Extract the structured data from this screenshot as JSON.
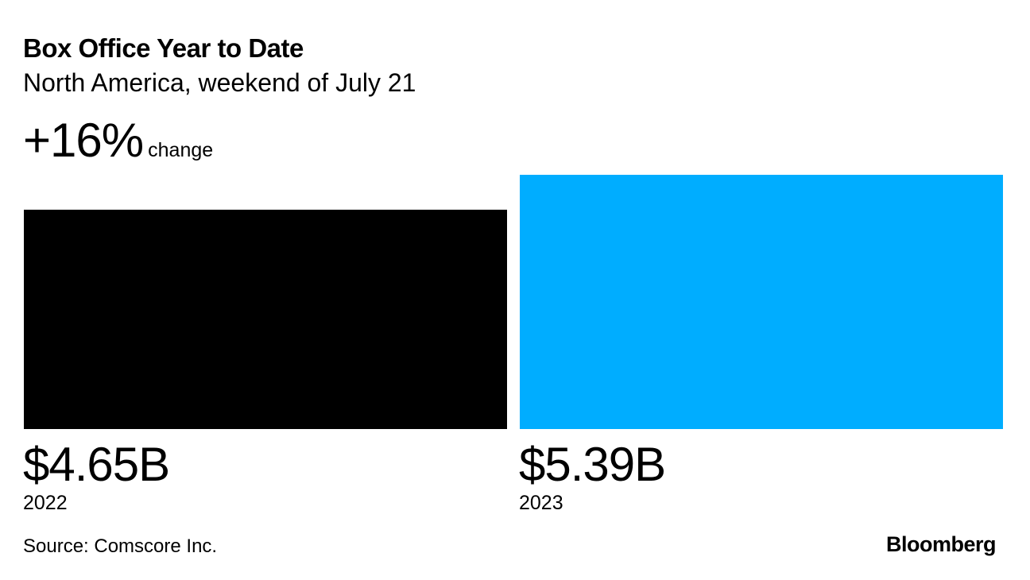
{
  "chart_data": {
    "type": "bar",
    "title": "Box Office Year to Date",
    "subtitle": "North America, weekend of July 21",
    "headline_value": "+16%",
    "headline_label": "change",
    "categories": [
      "2022",
      "2023"
    ],
    "values": [
      4.65,
      5.39
    ],
    "value_labels": [
      "$4.65B",
      "$5.39B"
    ],
    "colors": [
      "#000000",
      "#00ADFF"
    ],
    "ylim": [
      0,
      5.39
    ],
    "grid": false,
    "source": "Source: Comscore Inc.",
    "logo": "Bloomberg"
  }
}
